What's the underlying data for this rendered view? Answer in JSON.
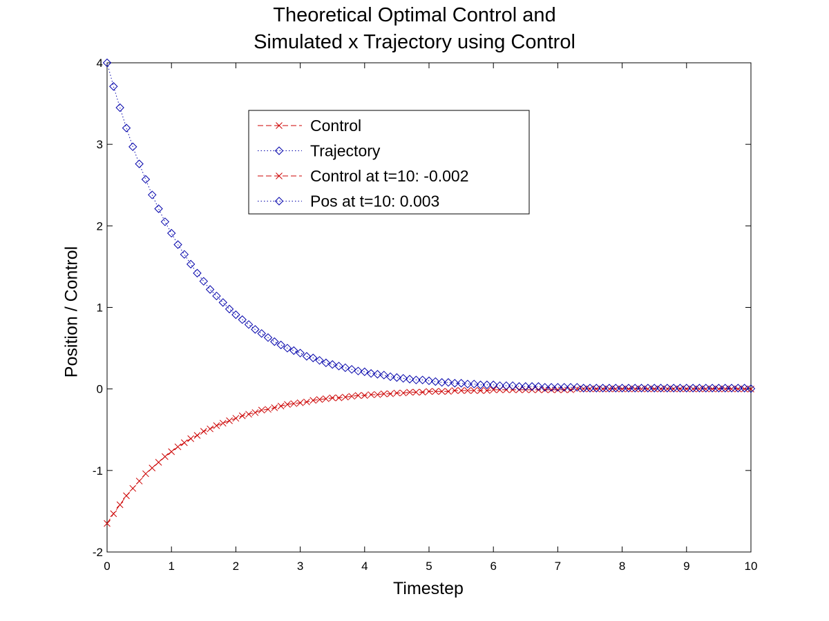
{
  "chart_data": {
    "type": "line",
    "title": [
      "Theoretical Optimal Control and",
      "Simulated x Trajectory using Control"
    ],
    "xlabel": "Timestep",
    "ylabel": "Position / Control",
    "xlim": [
      0,
      10
    ],
    "ylim": [
      -2,
      4
    ],
    "xticks": [
      "0",
      "1",
      "2",
      "3",
      "4",
      "5",
      "6",
      "7",
      "8",
      "9",
      "10"
    ],
    "yticks": [
      "-2",
      "-1",
      "0",
      "1",
      "2",
      "3",
      "4"
    ],
    "grid": false,
    "legend_position": "top-center",
    "legend": [
      {
        "label": "Control",
        "color": "#cc0000",
        "marker": "x",
        "line": "dashed"
      },
      {
        "label": "Trajectory",
        "color": "#0000aa",
        "marker": "diamond",
        "line": "dotted"
      },
      {
        "label": "Control at t=10:  -0.002",
        "color": "#cc0000",
        "marker": "x",
        "line": "dashed"
      },
      {
        "label": "Pos at t=10:  0.003",
        "color": "#0000aa",
        "marker": "diamond",
        "line": "dotted"
      }
    ],
    "series": [
      {
        "name": "Control",
        "color": "#cc0000",
        "marker": "x",
        "line": "dashed",
        "x": [
          0,
          0.1,
          0.2,
          0.3,
          0.4,
          0.5,
          0.6,
          0.7,
          0.8,
          0.9,
          1.0,
          1.1,
          1.2,
          1.3,
          1.4,
          1.5,
          1.6,
          1.7,
          1.8,
          1.9,
          2.0,
          2.1,
          2.2,
          2.3,
          2.4,
          2.5,
          2.6,
          2.7,
          2.8,
          2.9,
          3.0,
          3.1,
          3.2,
          3.3,
          3.4,
          3.5,
          3.6,
          3.7,
          3.8,
          3.9,
          4.0,
          4.1,
          4.2,
          4.3,
          4.4,
          4.5,
          4.6,
          4.7,
          4.8,
          4.9,
          5.0,
          5.1,
          5.2,
          5.3,
          5.4,
          5.5,
          5.6,
          5.7,
          5.8,
          5.9,
          6.0,
          6.1,
          6.2,
          6.3,
          6.4,
          6.5,
          6.6,
          6.7,
          6.8,
          6.9,
          7.0,
          7.1,
          7.2,
          7.3,
          7.4,
          7.5,
          7.6,
          7.7,
          7.8,
          7.9,
          8.0,
          8.1,
          8.2,
          8.3,
          8.4,
          8.5,
          8.6,
          8.7,
          8.8,
          8.9,
          9.0,
          9.1,
          9.2,
          9.3,
          9.4,
          9.5,
          9.6,
          9.7,
          9.8,
          9.9,
          10.0
        ],
        "y": [
          -1.65,
          -1.53,
          -1.42,
          -1.31,
          -1.22,
          -1.13,
          -1.04,
          -0.97,
          -0.9,
          -0.83,
          -0.77,
          -0.71,
          -0.66,
          -0.61,
          -0.57,
          -0.52,
          -0.49,
          -0.45,
          -0.42,
          -0.39,
          -0.36,
          -0.33,
          -0.31,
          -0.29,
          -0.26,
          -0.25,
          -0.23,
          -0.21,
          -0.19,
          -0.18,
          -0.17,
          -0.16,
          -0.14,
          -0.13,
          -0.12,
          -0.11,
          -0.11,
          -0.1,
          -0.09,
          -0.08,
          -0.08,
          -0.07,
          -0.07,
          -0.06,
          -0.06,
          -0.05,
          -0.05,
          -0.04,
          -0.04,
          -0.04,
          -0.03,
          -0.03,
          -0.03,
          -0.03,
          -0.02,
          -0.02,
          -0.02,
          -0.02,
          -0.02,
          -0.02,
          -0.01,
          -0.01,
          -0.01,
          -0.01,
          -0.01,
          -0.01,
          -0.01,
          -0.01,
          -0.01,
          -0.01,
          -0.01,
          -0.01,
          -0.01,
          0,
          0,
          0,
          0,
          0,
          0,
          0,
          0,
          0,
          0,
          0,
          0,
          0,
          0,
          0,
          0,
          0,
          0,
          0,
          0,
          0,
          0,
          0,
          0,
          0,
          0,
          0,
          -0.002
        ]
      },
      {
        "name": "Trajectory",
        "color": "#0000aa",
        "marker": "diamond",
        "line": "dotted",
        "x": [
          0,
          0.1,
          0.2,
          0.3,
          0.4,
          0.5,
          0.6,
          0.7,
          0.8,
          0.9,
          1.0,
          1.1,
          1.2,
          1.3,
          1.4,
          1.5,
          1.6,
          1.7,
          1.8,
          1.9,
          2.0,
          2.1,
          2.2,
          2.3,
          2.4,
          2.5,
          2.6,
          2.7,
          2.8,
          2.9,
          3.0,
          3.1,
          3.2,
          3.3,
          3.4,
          3.5,
          3.6,
          3.7,
          3.8,
          3.9,
          4.0,
          4.1,
          4.2,
          4.3,
          4.4,
          4.5,
          4.6,
          4.7,
          4.8,
          4.9,
          5.0,
          5.1,
          5.2,
          5.3,
          5.4,
          5.5,
          5.6,
          5.7,
          5.8,
          5.9,
          6.0,
          6.1,
          6.2,
          6.3,
          6.4,
          6.5,
          6.6,
          6.7,
          6.8,
          6.9,
          7.0,
          7.1,
          7.2,
          7.3,
          7.4,
          7.5,
          7.6,
          7.7,
          7.8,
          7.9,
          8.0,
          8.1,
          8.2,
          8.3,
          8.4,
          8.5,
          8.6,
          8.7,
          8.8,
          8.9,
          9.0,
          9.1,
          9.2,
          9.3,
          9.4,
          9.5,
          9.6,
          9.7,
          9.8,
          9.9,
          10.0
        ],
        "y": [
          4.0,
          3.71,
          3.45,
          3.2,
          2.97,
          2.76,
          2.57,
          2.38,
          2.21,
          2.05,
          1.91,
          1.77,
          1.65,
          1.53,
          1.42,
          1.32,
          1.22,
          1.14,
          1.06,
          0.98,
          0.91,
          0.85,
          0.79,
          0.73,
          0.68,
          0.63,
          0.58,
          0.54,
          0.5,
          0.47,
          0.44,
          0.4,
          0.38,
          0.35,
          0.32,
          0.3,
          0.28,
          0.26,
          0.24,
          0.22,
          0.21,
          0.19,
          0.18,
          0.17,
          0.15,
          0.14,
          0.13,
          0.12,
          0.11,
          0.11,
          0.1,
          0.09,
          0.08,
          0.08,
          0.07,
          0.07,
          0.06,
          0.06,
          0.05,
          0.05,
          0.05,
          0.04,
          0.04,
          0.04,
          0.03,
          0.03,
          0.03,
          0.03,
          0.02,
          0.02,
          0.02,
          0.02,
          0.02,
          0.02,
          0.01,
          0.01,
          0.01,
          0.01,
          0.01,
          0.01,
          0.01,
          0.01,
          0.01,
          0.01,
          0.01,
          0.01,
          0.01,
          0.01,
          0.01,
          0.01,
          0.01,
          0.01,
          0.01,
          0.01,
          0.01,
          0.01,
          0.01,
          0.01,
          0.01,
          0.01,
          0.003
        ]
      }
    ]
  }
}
